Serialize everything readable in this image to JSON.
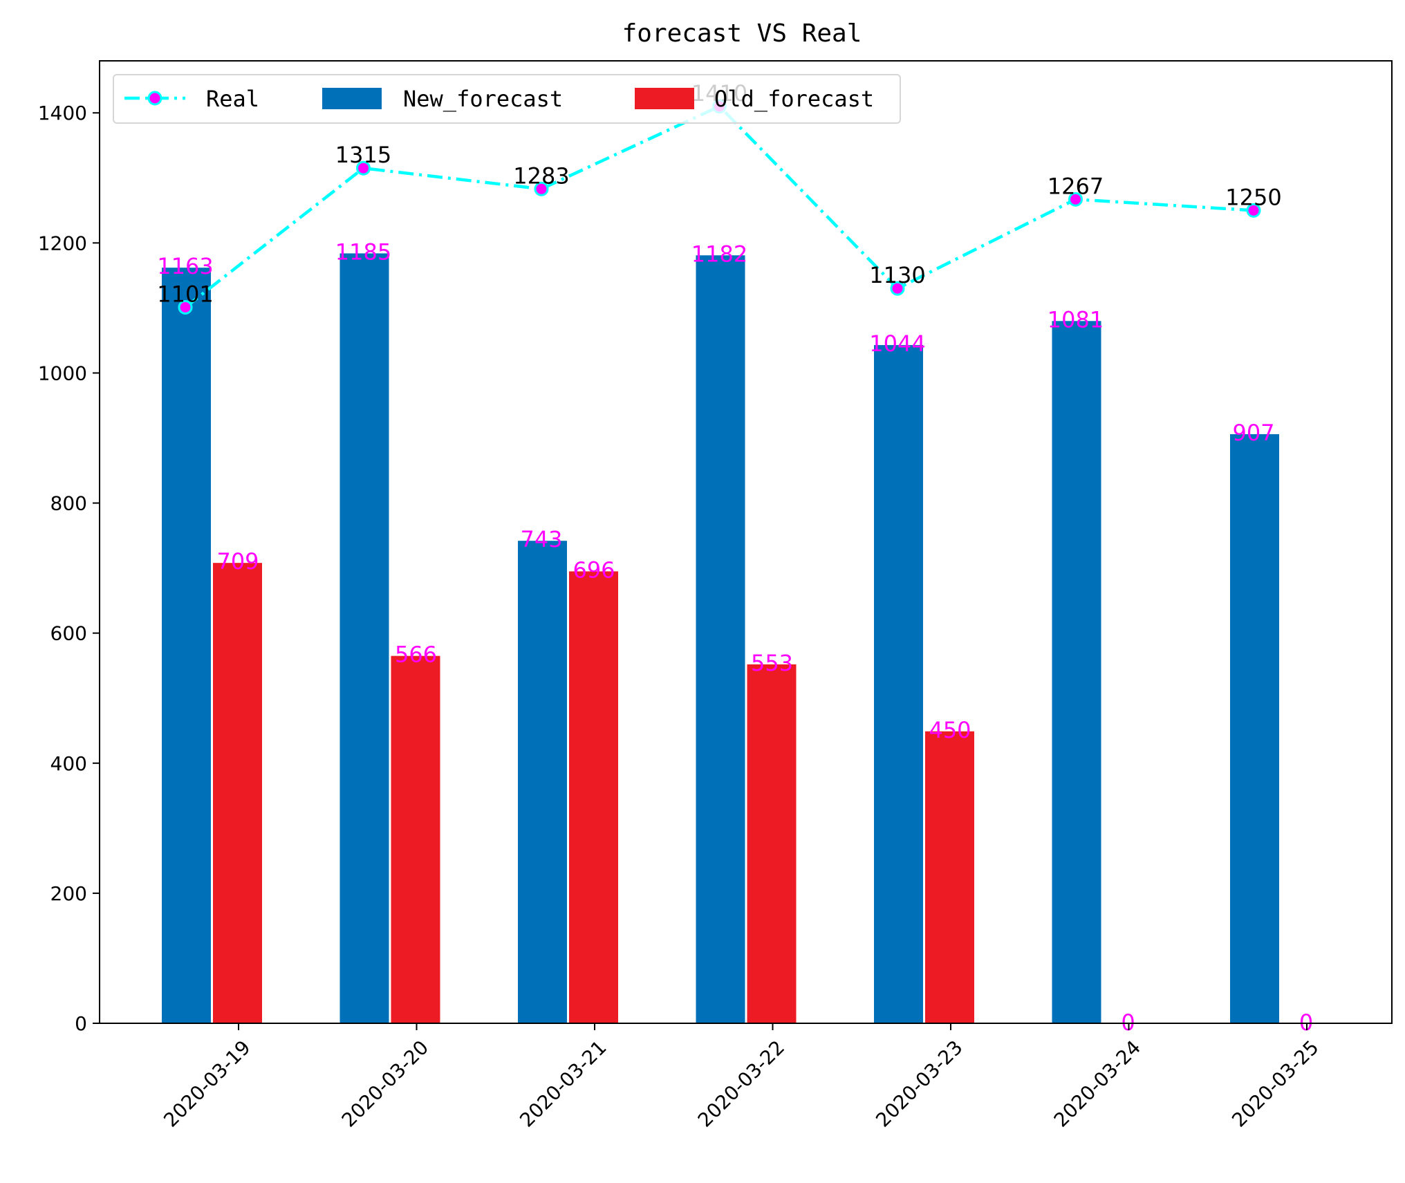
{
  "chart_data": {
    "type": "bar",
    "title": "forecast VS Real",
    "xlabel": "",
    "ylabel": "",
    "categories": [
      "2020-03-19",
      "2020-03-20",
      "2020-03-21",
      "2020-03-22",
      "2020-03-23",
      "2020-03-24",
      "2020-03-25"
    ],
    "ylim": [
      0,
      1480
    ],
    "yticks": [
      0,
      200,
      400,
      600,
      800,
      1000,
      1200,
      1400
    ],
    "grid": false,
    "legend_position": "top-left",
    "series": [
      {
        "name": "Real",
        "kind": "line",
        "color": "#00ffff",
        "marker_color": "#ff00ff",
        "label_color": "#000000",
        "values": [
          1101,
          1315,
          1283,
          1410,
          1130,
          1267,
          1250
        ]
      },
      {
        "name": "New_forecast",
        "kind": "bar",
        "color": "#0070b8",
        "label_color": "#ff00ff",
        "values": [
          1163,
          1185,
          743,
          1182,
          1044,
          1081,
          907
        ]
      },
      {
        "name": "Old_forecast",
        "kind": "bar",
        "color": "#ed1c24",
        "label_color": "#ff00ff",
        "values": [
          709,
          566,
          696,
          553,
          450,
          0,
          0
        ]
      }
    ]
  }
}
